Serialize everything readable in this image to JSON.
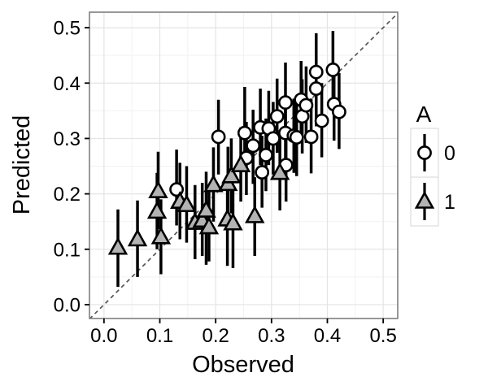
{
  "figure": {
    "xlabel": "Observed",
    "ylabel": "Predicted",
    "legend_title": "A",
    "legend_entry_0": "0",
    "legend_entry_1": "1"
  },
  "chart_data": {
    "type": "scatter",
    "subtype": "pointrange",
    "title": "",
    "xlabel": "Observed",
    "ylabel": "Predicted",
    "xlim": [
      -0.026,
      0.526
    ],
    "ylim": [
      -0.025,
      0.528
    ],
    "xticks": [
      0.0,
      0.1,
      0.2,
      0.3,
      0.4,
      0.5
    ],
    "yticks": [
      0.0,
      0.1,
      0.2,
      0.3,
      0.4,
      0.5
    ],
    "xtick_labels": [
      "0.0",
      "0.1",
      "0.2",
      "0.3",
      "0.4",
      "0.5"
    ],
    "ytick_labels": [
      "0.0",
      "0.1",
      "0.2",
      "0.3",
      "0.4",
      "0.5"
    ],
    "minor_ticks": [
      0.05,
      0.15,
      0.25,
      0.35,
      0.45
    ],
    "grid": "major+minor",
    "legend": {
      "title": "A",
      "position": "right"
    },
    "reference_line": {
      "slope": 1,
      "intercept": 0,
      "style": "dashed",
      "color": "#575757"
    },
    "series": [
      {
        "name": "0",
        "marker": "circle",
        "fill": "#ffffff",
        "stroke": "#000000",
        "points": [
          {
            "x": 0.13,
            "y": 0.208,
            "ymin": 0.143,
            "ymax": 0.28
          },
          {
            "x": 0.205,
            "y": 0.303,
            "ymin": 0.235,
            "ymax": 0.37
          },
          {
            "x": 0.252,
            "y": 0.31,
            "ymin": 0.245,
            "ymax": 0.393
          },
          {
            "x": 0.255,
            "y": 0.265,
            "ymin": 0.198,
            "ymax": 0.33
          },
          {
            "x": 0.267,
            "y": 0.287,
            "ymin": 0.218,
            "ymax": 0.352
          },
          {
            "x": 0.28,
            "y": 0.32,
            "ymin": 0.252,
            "ymax": 0.39
          },
          {
            "x": 0.283,
            "y": 0.239,
            "ymin": 0.175,
            "ymax": 0.305
          },
          {
            "x": 0.29,
            "y": 0.27,
            "ymin": 0.205,
            "ymax": 0.336
          },
          {
            "x": 0.295,
            "y": 0.318,
            "ymin": 0.252,
            "ymax": 0.386
          },
          {
            "x": 0.303,
            "y": 0.3,
            "ymin": 0.235,
            "ymax": 0.366
          },
          {
            "x": 0.31,
            "y": 0.34,
            "ymin": 0.274,
            "ymax": 0.408
          },
          {
            "x": 0.325,
            "y": 0.31,
            "ymin": 0.244,
            "ymax": 0.377
          },
          {
            "x": 0.325,
            "y": 0.365,
            "ymin": 0.297,
            "ymax": 0.437
          },
          {
            "x": 0.326,
            "y": 0.252,
            "ymin": 0.186,
            "ymax": 0.32
          },
          {
            "x": 0.34,
            "y": 0.305,
            "ymin": 0.238,
            "ymax": 0.372
          },
          {
            "x": 0.345,
            "y": 0.302,
            "ymin": 0.232,
            "ymax": 0.37
          },
          {
            "x": 0.353,
            "y": 0.37,
            "ymin": 0.302,
            "ymax": 0.44
          },
          {
            "x": 0.355,
            "y": 0.34,
            "ymin": 0.273,
            "ymax": 0.407
          },
          {
            "x": 0.362,
            "y": 0.36,
            "ymin": 0.292,
            "ymax": 0.43
          },
          {
            "x": 0.371,
            "y": 0.303,
            "ymin": 0.237,
            "ymax": 0.372
          },
          {
            "x": 0.38,
            "y": 0.42,
            "ymin": 0.35,
            "ymax": 0.49
          },
          {
            "x": 0.38,
            "y": 0.39,
            "ymin": 0.322,
            "ymax": 0.458
          },
          {
            "x": 0.39,
            "y": 0.332,
            "ymin": 0.266,
            "ymax": 0.4
          },
          {
            "x": 0.41,
            "y": 0.424,
            "ymin": 0.356,
            "ymax": 0.494
          },
          {
            "x": 0.412,
            "y": 0.362,
            "ymin": 0.296,
            "ymax": 0.432
          },
          {
            "x": 0.421,
            "y": 0.348,
            "ymin": 0.281,
            "ymax": 0.418
          }
        ]
      },
      {
        "name": "1",
        "marker": "triangle",
        "fill": "#b3b3b3",
        "stroke": "#000000",
        "points": [
          {
            "x": 0.025,
            "y": 0.103,
            "ymin": 0.032,
            "ymax": 0.172
          },
          {
            "x": 0.06,
            "y": 0.118,
            "ymin": 0.05,
            "ymax": 0.188
          },
          {
            "x": 0.102,
            "y": 0.122,
            "ymin": 0.055,
            "ymax": 0.19
          },
          {
            "x": 0.095,
            "y": 0.168,
            "ymin": 0.1,
            "ymax": 0.238
          },
          {
            "x": 0.097,
            "y": 0.205,
            "ymin": 0.136,
            "ymax": 0.276
          },
          {
            "x": 0.136,
            "y": 0.186,
            "ymin": 0.118,
            "ymax": 0.256
          },
          {
            "x": 0.148,
            "y": 0.18,
            "ymin": 0.112,
            "ymax": 0.25
          },
          {
            "x": 0.163,
            "y": 0.148,
            "ymin": 0.082,
            "ymax": 0.216
          },
          {
            "x": 0.176,
            "y": 0.152,
            "ymin": 0.088,
            "ymax": 0.22
          },
          {
            "x": 0.183,
            "y": 0.17,
            "ymin": 0.072,
            "ymax": 0.24
          },
          {
            "x": 0.188,
            "y": 0.14,
            "ymin": 0.078,
            "ymax": 0.205
          },
          {
            "x": 0.196,
            "y": 0.216,
            "ymin": 0.15,
            "ymax": 0.284
          },
          {
            "x": 0.222,
            "y": 0.218,
            "ymin": 0.152,
            "ymax": 0.285
          },
          {
            "x": 0.228,
            "y": 0.232,
            "ymin": 0.165,
            "ymax": 0.3
          },
          {
            "x": 0.221,
            "y": 0.154,
            "ymin": 0.07,
            "ymax": 0.224
          },
          {
            "x": 0.231,
            "y": 0.147,
            "ymin": 0.066,
            "ymax": 0.215
          },
          {
            "x": 0.245,
            "y": 0.252,
            "ymin": 0.186,
            "ymax": 0.32
          },
          {
            "x": 0.27,
            "y": 0.16,
            "ymin": 0.088,
            "ymax": 0.23
          },
          {
            "x": 0.315,
            "y": 0.238,
            "ymin": 0.17,
            "ymax": 0.302
          }
        ]
      }
    ],
    "style": {
      "panel_bg": "#ffffff",
      "panel_border": "#7f7f7f",
      "grid_major": "#e4e4e4",
      "grid_minor": "#f2f2f2",
      "bar_color": "#000000",
      "legend_box_border": "#d6d6d6"
    }
  }
}
